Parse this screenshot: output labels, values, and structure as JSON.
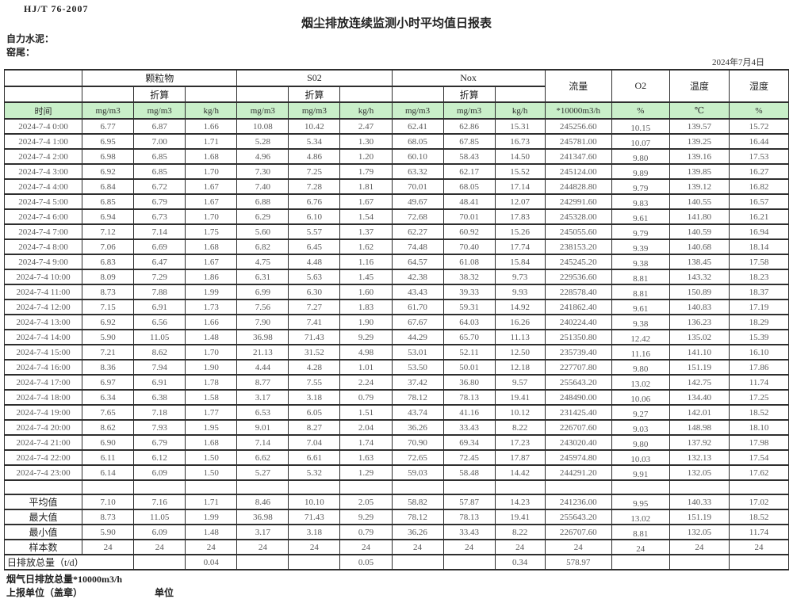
{
  "meta": {
    "standard_code": "HJ/T 76-2007",
    "title": "烟尘排放连续监测小时平均值日报表",
    "company": "自力水泥：",
    "site": "窑尾：",
    "date": "2024年7月4日"
  },
  "colors": {
    "unit_row_bg": "#c9efc9",
    "border": "#2e2e2e"
  },
  "table": {
    "time_label": "时间",
    "conversion_label": "折算",
    "flow_label": "流量",
    "o2_label": "O2",
    "temp_label": "温度",
    "humidity_label": "湿度",
    "groups": [
      {
        "label": "颗粒物"
      },
      {
        "label": "S02"
      },
      {
        "label": "Nox"
      }
    ],
    "units": [
      "mg/m3",
      "mg/m3",
      "kg/h",
      "mg/m3",
      "mg/m3",
      "kg/h",
      "mg/m3",
      "mg/m3",
      "kg/h",
      "*10000m3/h",
      "%",
      "℃",
      "%"
    ],
    "rows": [
      {
        "time": "2024-7-4 0:00",
        "values": [
          "6.77",
          "6.87",
          "1.66",
          "10.08",
          "10.42",
          "2.47",
          "62.41",
          "62.86",
          "15.31",
          "245256.60",
          "10.15",
          "139.57",
          "15.72"
        ]
      },
      {
        "time": "2024-7-4 1:00",
        "values": [
          "6.95",
          "7.00",
          "1.71",
          "5.28",
          "5.34",
          "1.30",
          "68.05",
          "67.85",
          "16.73",
          "245781.00",
          "10.07",
          "139.25",
          "16.44"
        ]
      },
      {
        "time": "2024-7-4 2:00",
        "values": [
          "6.98",
          "6.85",
          "1.68",
          "4.96",
          "4.86",
          "1.20",
          "60.10",
          "58.43",
          "14.50",
          "241347.60",
          "9.80",
          "139.16",
          "17.53"
        ]
      },
      {
        "time": "2024-7-4 3:00",
        "values": [
          "6.92",
          "6.85",
          "1.70",
          "7.30",
          "7.25",
          "1.79",
          "63.32",
          "62.17",
          "15.52",
          "245124.00",
          "9.89",
          "139.85",
          "16.27"
        ]
      },
      {
        "time": "2024-7-4 4:00",
        "values": [
          "6.84",
          "6.72",
          "1.67",
          "7.40",
          "7.28",
          "1.81",
          "70.01",
          "68.05",
          "17.14",
          "244828.80",
          "9.79",
          "139.12",
          "16.82"
        ]
      },
      {
        "time": "2024-7-4 5:00",
        "values": [
          "6.85",
          "6.79",
          "1.67",
          "6.88",
          "6.76",
          "1.67",
          "49.67",
          "48.41",
          "12.07",
          "242991.60",
          "9.83",
          "140.55",
          "16.57"
        ]
      },
      {
        "time": "2024-7-4 6:00",
        "values": [
          "6.94",
          "6.73",
          "1.70",
          "6.29",
          "6.10",
          "1.54",
          "72.68",
          "70.01",
          "17.83",
          "245328.00",
          "9.61",
          "141.80",
          "16.21"
        ]
      },
      {
        "time": "2024-7-4 7:00",
        "values": [
          "7.12",
          "7.14",
          "1.75",
          "5.60",
          "5.57",
          "1.37",
          "62.27",
          "60.92",
          "15.26",
          "245055.60",
          "9.79",
          "140.59",
          "16.94"
        ]
      },
      {
        "time": "2024-7-4 8:00",
        "values": [
          "7.06",
          "6.69",
          "1.68",
          "6.82",
          "6.45",
          "1.62",
          "74.48",
          "70.40",
          "17.74",
          "238153.20",
          "9.39",
          "140.68",
          "18.14"
        ]
      },
      {
        "time": "2024-7-4 9:00",
        "values": [
          "6.83",
          "6.47",
          "1.67",
          "4.75",
          "4.48",
          "1.16",
          "64.57",
          "61.08",
          "15.84",
          "245245.20",
          "9.38",
          "138.45",
          "17.58"
        ]
      },
      {
        "time": "2024-7-4 10:00",
        "values": [
          "8.09",
          "7.29",
          "1.86",
          "6.31",
          "5.63",
          "1.45",
          "42.38",
          "38.32",
          "9.73",
          "229536.60",
          "8.81",
          "143.32",
          "18.23"
        ]
      },
      {
        "time": "2024-7-4 11:00",
        "values": [
          "8.73",
          "7.88",
          "1.99",
          "6.99",
          "6.30",
          "1.60",
          "43.43",
          "39.33",
          "9.93",
          "228578.40",
          "8.81",
          "150.89",
          "18.37"
        ]
      },
      {
        "time": "2024-7-4 12:00",
        "values": [
          "7.15",
          "6.91",
          "1.73",
          "7.56",
          "7.27",
          "1.83",
          "61.70",
          "59.31",
          "14.92",
          "241862.40",
          "9.61",
          "140.83",
          "17.19"
        ]
      },
      {
        "time": "2024-7-4 13:00",
        "values": [
          "6.92",
          "6.56",
          "1.66",
          "7.90",
          "7.41",
          "1.90",
          "67.67",
          "64.03",
          "16.26",
          "240224.40",
          "9.38",
          "136.23",
          "18.29"
        ]
      },
      {
        "time": "2024-7-4 14:00",
        "values": [
          "5.90",
          "11.05",
          "1.48",
          "36.98",
          "71.43",
          "9.29",
          "44.29",
          "65.70",
          "11.13",
          "251350.80",
          "12.42",
          "135.02",
          "15.39"
        ]
      },
      {
        "time": "2024-7-4 15:00",
        "values": [
          "7.21",
          "8.62",
          "1.70",
          "21.13",
          "31.52",
          "4.98",
          "53.01",
          "52.11",
          "12.50",
          "235739.40",
          "11.16",
          "141.10",
          "16.10"
        ]
      },
      {
        "time": "2024-7-4 16:00",
        "values": [
          "8.36",
          "7.94",
          "1.90",
          "4.44",
          "4.28",
          "1.01",
          "53.50",
          "50.01",
          "12.18",
          "227707.80",
          "9.80",
          "151.19",
          "17.86"
        ]
      },
      {
        "time": "2024-7-4 17:00",
        "values": [
          "6.97",
          "6.91",
          "1.78",
          "8.77",
          "7.55",
          "2.24",
          "37.42",
          "36.80",
          "9.57",
          "255643.20",
          "13.02",
          "142.75",
          "11.74"
        ]
      },
      {
        "time": "2024-7-4 18:00",
        "values": [
          "6.34",
          "6.38",
          "1.58",
          "3.17",
          "3.18",
          "0.79",
          "78.12",
          "78.13",
          "19.41",
          "248490.00",
          "10.06",
          "134.40",
          "17.25"
        ]
      },
      {
        "time": "2024-7-4 19:00",
        "values": [
          "7.65",
          "7.18",
          "1.77",
          "6.53",
          "6.05",
          "1.51",
          "43.74",
          "41.16",
          "10.12",
          "231425.40",
          "9.27",
          "142.01",
          "18.52"
        ]
      },
      {
        "time": "2024-7-4 20:00",
        "values": [
          "8.62",
          "7.93",
          "1.95",
          "9.01",
          "8.27",
          "2.04",
          "36.26",
          "33.43",
          "8.22",
          "226707.60",
          "9.03",
          "148.98",
          "18.10"
        ]
      },
      {
        "time": "2024-7-4 21:00",
        "values": [
          "6.90",
          "6.79",
          "1.68",
          "7.14",
          "7.04",
          "1.74",
          "70.90",
          "69.34",
          "17.23",
          "243020.40",
          "9.80",
          "137.92",
          "17.98"
        ]
      },
      {
        "time": "2024-7-4 22:00",
        "values": [
          "6.11",
          "6.12",
          "1.50",
          "6.62",
          "6.61",
          "1.63",
          "72.65",
          "72.45",
          "17.87",
          "245974.80",
          "10.03",
          "132.13",
          "17.54"
        ]
      },
      {
        "time": "2024-7-4 23:00",
        "values": [
          "6.14",
          "6.09",
          "1.50",
          "5.27",
          "5.32",
          "1.29",
          "59.03",
          "58.48",
          "14.42",
          "244291.20",
          "9.91",
          "132.05",
          "17.62"
        ]
      }
    ],
    "summary_rows": [
      {
        "label": "平均值",
        "values": [
          "7.10",
          "7.16",
          "1.71",
          "8.46",
          "10.10",
          "2.05",
          "58.82",
          "57.87",
          "14.23",
          "241236.00",
          "9.95",
          "140.33",
          "17.02"
        ]
      },
      {
        "label": "最大值",
        "values": [
          "8.73",
          "11.05",
          "1.99",
          "36.98",
          "71.43",
          "9.29",
          "78.12",
          "78.13",
          "19.41",
          "255643.20",
          "13.02",
          "151.19",
          "18.52"
        ]
      },
      {
        "label": "最小值",
        "values": [
          "5.90",
          "6.09",
          "1.48",
          "3.17",
          "3.18",
          "0.79",
          "36.26",
          "33.43",
          "8.22",
          "226707.60",
          "8.81",
          "132.05",
          "11.74"
        ]
      },
      {
        "label": "样本数",
        "values": [
          "24",
          "24",
          "24",
          "24",
          "24",
          "24",
          "24",
          "24",
          "24",
          "24",
          "24",
          "24",
          "24"
        ]
      }
    ],
    "daily_total": {
      "label": "日排放总量（t/d）",
      "values": [
        "",
        "",
        "0.04",
        "",
        "",
        "0.05",
        "",
        "",
        "0.34",
        "578.97",
        "",
        "",
        ""
      ]
    }
  },
  "footer": {
    "flow_note": "烟气日排放总量*10000m3/h",
    "report_unit_label": "上报单位（盖章）",
    "unit_label": "单位"
  }
}
